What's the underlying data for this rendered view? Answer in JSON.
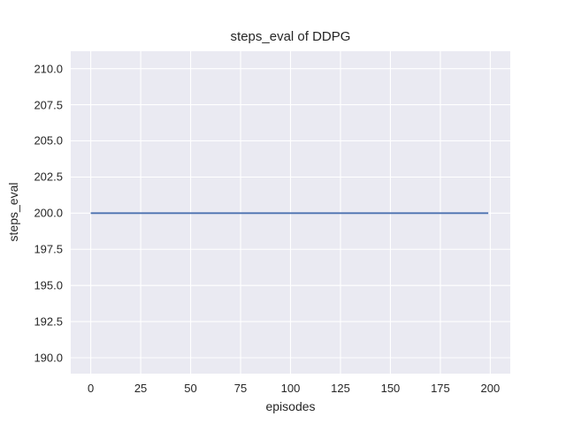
{
  "chart_data": {
    "type": "line",
    "title": "steps_eval of DDPG",
    "xlabel": "episodes",
    "ylabel": "steps_eval",
    "series": [
      {
        "name": "steps_eval of DDPG",
        "color": "#4C72B0",
        "x": [
          0,
          199
        ],
        "y": [
          200,
          200
        ],
        "description": "horizontal line, constant steps_eval = 200 for episodes 0 through 199"
      }
    ],
    "xlim": [
      -10,
      210
    ],
    "ylim": [
      188.9,
      211.2
    ],
    "xticks": [
      0,
      25,
      50,
      75,
      100,
      125,
      150,
      175,
      200
    ],
    "xtick_labels": [
      "0",
      "25",
      "50",
      "75",
      "100",
      "125",
      "150",
      "175",
      "200"
    ],
    "yticks": [
      190,
      192.5,
      195,
      197.5,
      200,
      202.5,
      205,
      207.5,
      210
    ],
    "ytick_labels": [
      "190.0",
      "192.5",
      "195.0",
      "197.5",
      "200.0",
      "202.5",
      "205.0",
      "207.5",
      "210.0"
    ],
    "grid": true,
    "legend": false,
    "style": {
      "figure_bg": "#ffffff",
      "plot_bg": "#eaeaf2",
      "grid_color": "#ffffff",
      "text_color": "#262626",
      "line_width": 1.8,
      "grid_width": 1.1
    }
  }
}
